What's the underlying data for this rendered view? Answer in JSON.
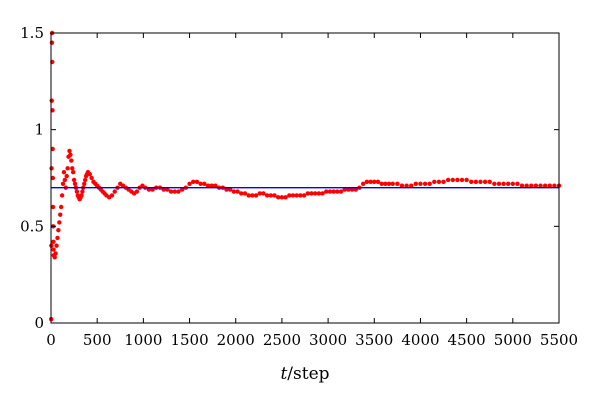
{
  "chart_data": {
    "type": "scatter",
    "title": "",
    "xlabel": {
      "var": "t",
      "sep": "/",
      "unit": "step"
    },
    "ylabel": "",
    "xlim": [
      0,
      5500
    ],
    "ylim": [
      0,
      1.5
    ],
    "xticks": [
      0,
      500,
      1000,
      1500,
      2000,
      2500,
      3000,
      3500,
      4000,
      4500,
      5000,
      5500
    ],
    "yticks": [
      0,
      0.5,
      1,
      1.5
    ],
    "xtick_labels": [
      "0",
      "500",
      "1000",
      "1500",
      "2000",
      "2500",
      "3000",
      "3500",
      "4000",
      "4500",
      "5000",
      "5500"
    ],
    "ytick_labels": [
      "0",
      "0.5",
      "1",
      "1.5"
    ],
    "grid": false,
    "series": [
      {
        "kind": "scatter",
        "color": "#ff0000",
        "x": [
          2,
          4,
          6,
          8,
          10,
          12,
          14,
          16,
          18,
          20,
          22,
          24,
          26,
          28,
          30,
          40,
          50,
          60,
          70,
          80,
          90,
          100,
          110,
          120,
          130,
          140,
          150,
          160,
          170,
          180,
          190,
          200,
          210,
          220,
          230,
          240,
          250,
          260,
          270,
          280,
          290,
          300,
          310,
          320,
          330,
          340,
          350,
          360,
          370,
          380,
          390,
          400,
          420,
          440,
          460,
          480,
          500,
          520,
          540,
          560,
          580,
          600,
          630,
          660,
          690,
          720,
          750,
          780,
          810,
          840,
          870,
          900,
          930,
          960,
          990,
          1020,
          1060,
          1100,
          1140,
          1180,
          1220,
          1260,
          1300,
          1340,
          1380,
          1420,
          1460,
          1500,
          1540,
          1580,
          1620,
          1660,
          1700,
          1740,
          1780,
          1820,
          1860,
          1900,
          1940,
          1980,
          2020,
          2060,
          2100,
          2140,
          2180,
          2220,
          2260,
          2300,
          2340,
          2380,
          2420,
          2460,
          2500,
          2540,
          2580,
          2620,
          2660,
          2700,
          2740,
          2780,
          2820,
          2860,
          2900,
          2940,
          2980,
          3020,
          3060,
          3100,
          3140,
          3180,
          3220,
          3260,
          3300,
          3340,
          3380,
          3420,
          3460,
          3500,
          3540,
          3580,
          3620,
          3660,
          3700,
          3750,
          3800,
          3850,
          3900,
          3950,
          4000,
          4050,
          4100,
          4150,
          4200,
          4250,
          4300,
          4350,
          4400,
          4450,
          4500,
          4550,
          4600,
          4650,
          4700,
          4750,
          4800,
          4850,
          4900,
          4950,
          5000,
          5050,
          5100,
          5150,
          5200,
          5250,
          5300,
          5350,
          5400,
          5450,
          5500
        ],
        "y": [
          0.02,
          0.4,
          0.8,
          1.15,
          1.45,
          1.5,
          1.35,
          1.1,
          0.9,
          0.75,
          0.6,
          0.5,
          0.42,
          0.38,
          0.35,
          0.34,
          0.36,
          0.4,
          0.44,
          0.48,
          0.52,
          0.56,
          0.6,
          0.66,
          0.72,
          0.78,
          0.74,
          0.7,
          0.76,
          0.8,
          0.86,
          0.89,
          0.87,
          0.84,
          0.8,
          0.78,
          0.74,
          0.72,
          0.7,
          0.68,
          0.66,
          0.65,
          0.64,
          0.65,
          0.66,
          0.68,
          0.7,
          0.72,
          0.74,
          0.76,
          0.77,
          0.78,
          0.77,
          0.75,
          0.73,
          0.72,
          0.71,
          0.7,
          0.69,
          0.68,
          0.67,
          0.66,
          0.65,
          0.66,
          0.68,
          0.7,
          0.72,
          0.71,
          0.7,
          0.69,
          0.68,
          0.67,
          0.68,
          0.7,
          0.71,
          0.7,
          0.69,
          0.69,
          0.7,
          0.7,
          0.69,
          0.69,
          0.68,
          0.68,
          0.68,
          0.69,
          0.7,
          0.72,
          0.73,
          0.73,
          0.72,
          0.72,
          0.71,
          0.71,
          0.71,
          0.7,
          0.7,
          0.69,
          0.69,
          0.68,
          0.68,
          0.67,
          0.67,
          0.66,
          0.66,
          0.66,
          0.67,
          0.67,
          0.66,
          0.66,
          0.66,
          0.65,
          0.65,
          0.65,
          0.66,
          0.66,
          0.66,
          0.66,
          0.66,
          0.67,
          0.67,
          0.67,
          0.67,
          0.67,
          0.68,
          0.68,
          0.68,
          0.68,
          0.68,
          0.69,
          0.69,
          0.69,
          0.69,
          0.7,
          0.72,
          0.73,
          0.73,
          0.73,
          0.73,
          0.72,
          0.72,
          0.72,
          0.72,
          0.72,
          0.71,
          0.71,
          0.71,
          0.72,
          0.72,
          0.72,
          0.72,
          0.73,
          0.73,
          0.73,
          0.74,
          0.74,
          0.74,
          0.74,
          0.74,
          0.73,
          0.73,
          0.73,
          0.73,
          0.73,
          0.72,
          0.72,
          0.72,
          0.72,
          0.72,
          0.72,
          0.71,
          0.71,
          0.71,
          0.71,
          0.71,
          0.71,
          0.71,
          0.71,
          0.71
        ]
      },
      {
        "kind": "line",
        "color": "#0000ff",
        "x": [
          0,
          5500
        ],
        "y": [
          0.7,
          0.7
        ]
      }
    ]
  }
}
